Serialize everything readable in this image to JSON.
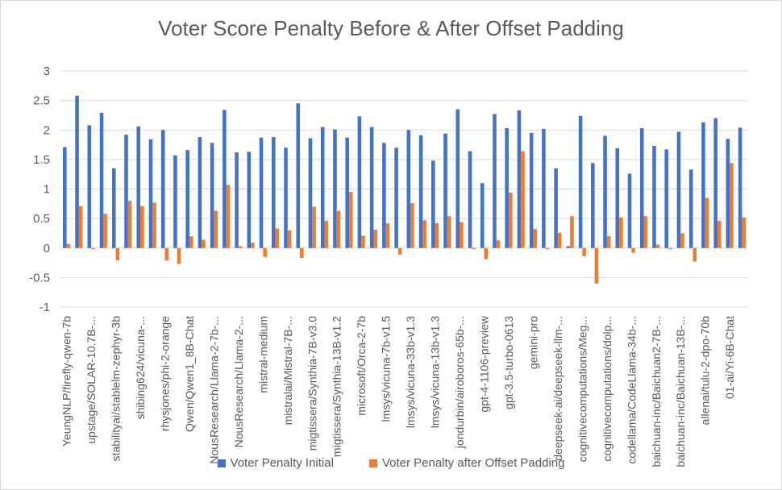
{
  "chart_data": {
    "type": "bar",
    "title": "Voter Score Penalty Before & After Offset Padding",
    "xlabel": "",
    "ylabel": "",
    "ylim": [
      -1,
      3
    ],
    "yticks": [
      "-1",
      "-0.5",
      "0",
      "0.5",
      "1",
      "1.5",
      "2",
      "2.5",
      "3"
    ],
    "grid": true,
    "legend_position": "bottom",
    "colors": {
      "initial": "#4472C4",
      "after": "#ED7D31",
      "grid": "#d9d9d9",
      "text": "#595959"
    },
    "categories": [
      "YeungNLP/firefly-qwen-7b",
      "",
      "upstage/SOLAR-10.7B-...",
      "",
      "stabilityai/stablelm-zephyr-3b",
      "",
      "shibing624/vicuna-...",
      "",
      "rhysjones/phi-2-orange",
      "",
      "Qwen/Qwen1_8B-Chat",
      "",
      "NousResearch/Llama-2-7b-...",
      "",
      "NousResearch/Llama-2-...",
      "",
      "mistral-medium",
      "",
      "mistralai/Mistral-7B-...",
      "",
      "migtissera/Synthia-7B-v3.0",
      "",
      "migtissera/Synthia-13B-v1.2",
      "",
      "microsoft/Orca-2-7b",
      "",
      "lmsys/vicuna-7b-v1.5",
      "",
      "lmsys/vicuna-33b-v1.3",
      "",
      "lmsys/vicuna-13b-v1.3",
      "",
      "jondurbin/airoboros-65b-...",
      "",
      "gpt-4-1106-preview",
      "",
      "gpt-3.5-turbo-0613",
      "",
      "gemini-pro",
      "",
      "deepseek-ai/deepseek-llm-...",
      "",
      "cognitivecomputations/Meg...",
      "",
      "cognitivecomputations/dolp...",
      "",
      "codellama/CodeLlama-34b-...",
      "",
      "baichuan-inc/Baichuan2-7B-...",
      "",
      "baichuan-inc/Baichuan-13B-...",
      "",
      "allenai/tulu-2-dpo-70b",
      "",
      "01-ai/Yi-6B-Chat",
      ""
    ],
    "series": [
      {
        "name": "Voter Penalty Initial",
        "values": [
          1.71,
          2.58,
          2.08,
          2.29,
          1.35,
          1.92,
          2.06,
          1.84,
          2.0,
          1.57,
          1.66,
          1.88,
          1.78,
          2.34,
          1.62,
          1.63,
          1.87,
          1.88,
          1.7,
          2.45,
          1.86,
          2.05,
          2.01,
          1.87,
          2.23,
          2.05,
          1.78,
          1.7,
          2.0,
          1.91,
          1.48,
          1.94,
          2.35,
          1.64,
          1.1,
          2.27,
          2.03,
          2.33,
          1.95,
          2.02,
          1.35,
          0.03,
          2.24,
          1.44,
          1.9,
          1.69,
          1.26,
          2.03,
          1.73,
          1.67,
          1.97,
          1.33,
          2.13,
          2.2,
          1.85,
          2.04
        ]
      },
      {
        "name": "Voter Penalty after Offset Padding",
        "values": [
          0.07,
          0.71,
          -0.02,
          0.58,
          -0.21,
          0.8,
          0.71,
          0.77,
          -0.21,
          -0.27,
          0.2,
          0.14,
          0.63,
          1.07,
          0.03,
          0.09,
          -0.15,
          0.33,
          0.3,
          -0.17,
          0.7,
          0.46,
          0.63,
          0.95,
          0.21,
          0.31,
          0.42,
          -0.11,
          0.76,
          0.47,
          0.42,
          0.54,
          0.44,
          -0.02,
          -0.19,
          0.13,
          0.94,
          1.64,
          0.32,
          -0.02,
          0.26,
          0.54,
          -0.14,
          -0.6,
          0.2,
          0.52,
          -0.08,
          0.54,
          0.06,
          -0.02,
          0.25,
          -0.23,
          0.85,
          0.46,
          1.44,
          0.52
        ]
      }
    ]
  }
}
